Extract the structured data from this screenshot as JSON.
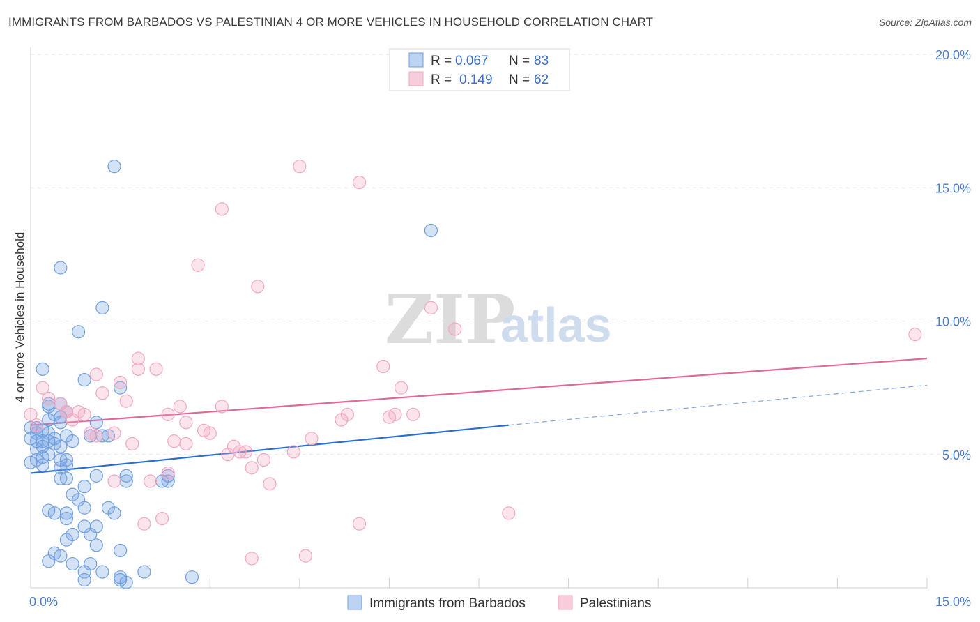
{
  "title": "IMMIGRANTS FROM BARBADOS VS PALESTINIAN 4 OR MORE VEHICLES IN HOUSEHOLD CORRELATION CHART",
  "source": "Source: ZipAtlas.com",
  "watermark": {
    "zip": "ZIP",
    "atlas": "atlas"
  },
  "legend": {
    "r_label": "R =",
    "n_label": "N =",
    "rows": [
      {
        "r": "0.067",
        "n": "83"
      },
      {
        "r": "0.149",
        "n": "62"
      }
    ]
  },
  "chart_data": {
    "type": "scatter",
    "ylabel": "4 or more Vehicles in Household",
    "xlabel": "",
    "xlim": [
      0,
      15
    ],
    "ylim": [
      0,
      20
    ],
    "x_tick_labels": [
      "0.0%",
      "15.0%"
    ],
    "y_tick_labels": [
      "5.0%",
      "10.0%",
      "15.0%",
      "20.0%"
    ],
    "y_ticks": [
      5,
      10,
      15,
      20
    ],
    "grid": "horizontal dashed",
    "legend_position": "top-center",
    "series": [
      {
        "name": "Immigrants from Barbados",
        "color": "#6f9fe0",
        "line_color": "#2a6fcf",
        "r": 0.067,
        "n": 83,
        "trend": {
          "x0": 0,
          "y0": 4.3,
          "x1": 8.0,
          "y1": 6.1,
          "extend_to": 15,
          "extend_y": 7.6
        },
        "points": [
          [
            1.4,
            15.8
          ],
          [
            6.7,
            13.4
          ],
          [
            0.5,
            12.0
          ],
          [
            1.2,
            10.5
          ],
          [
            0.8,
            9.6
          ],
          [
            0.2,
            8.2
          ],
          [
            0.9,
            7.8
          ],
          [
            1.5,
            7.5
          ],
          [
            0.3,
            6.9
          ],
          [
            0.5,
            6.9
          ],
          [
            0.3,
            6.8
          ],
          [
            0.6,
            6.6
          ],
          [
            0.4,
            6.5
          ],
          [
            0.5,
            6.4
          ],
          [
            0.5,
            6.2
          ],
          [
            1.1,
            6.2
          ],
          [
            0.0,
            6.0
          ],
          [
            0.1,
            6.0
          ],
          [
            0.2,
            5.9
          ],
          [
            0.1,
            5.8
          ],
          [
            0.3,
            5.8
          ],
          [
            0.6,
            5.7
          ],
          [
            1.0,
            5.7
          ],
          [
            1.2,
            5.7
          ],
          [
            1.3,
            5.7
          ],
          [
            0.0,
            5.6
          ],
          [
            0.1,
            5.5
          ],
          [
            0.2,
            5.5
          ],
          [
            0.3,
            5.5
          ],
          [
            0.4,
            5.4
          ],
          [
            0.1,
            5.2
          ],
          [
            0.5,
            5.3
          ],
          [
            0.3,
            5.0
          ],
          [
            0.2,
            4.9
          ],
          [
            0.1,
            4.8
          ],
          [
            0.5,
            4.8
          ],
          [
            0.6,
            4.8
          ],
          [
            0.0,
            4.7
          ],
          [
            0.6,
            4.6
          ],
          [
            1.1,
            4.2
          ],
          [
            1.6,
            4.2
          ],
          [
            2.3,
            4.2
          ],
          [
            0.5,
            4.1
          ],
          [
            0.6,
            4.1
          ],
          [
            1.6,
            4.0
          ],
          [
            2.2,
            4.0
          ],
          [
            2.3,
            4.0
          ],
          [
            0.9,
            3.8
          ],
          [
            0.7,
            3.5
          ],
          [
            0.3,
            2.9
          ],
          [
            0.4,
            2.8
          ],
          [
            0.6,
            2.8
          ],
          [
            0.9,
            3.0
          ],
          [
            1.3,
            3.0
          ],
          [
            1.4,
            2.8
          ],
          [
            0.6,
            2.6
          ],
          [
            0.9,
            2.3
          ],
          [
            1.1,
            2.3
          ],
          [
            0.7,
            2.0
          ],
          [
            0.6,
            1.8
          ],
          [
            1.1,
            1.6
          ],
          [
            1.5,
            1.4
          ],
          [
            0.3,
            1.0
          ],
          [
            0.5,
            1.2
          ],
          [
            0.7,
            0.9
          ],
          [
            1.0,
            0.9
          ],
          [
            0.9,
            0.6
          ],
          [
            1.2,
            0.6
          ],
          [
            1.5,
            0.4
          ],
          [
            1.9,
            0.6
          ],
          [
            2.7,
            0.4
          ],
          [
            1.6,
            0.2
          ],
          [
            0.9,
            0.3
          ],
          [
            1.5,
            0.3
          ],
          [
            0.4,
            1.3
          ],
          [
            0.2,
            5.3
          ],
          [
            0.4,
            5.6
          ],
          [
            0.7,
            5.5
          ],
          [
            0.3,
            6.3
          ],
          [
            0.8,
            3.3
          ],
          [
            1.0,
            2.0
          ],
          [
            0.5,
            4.5
          ],
          [
            0.2,
            4.6
          ]
        ]
      },
      {
        "name": "Palestinians",
        "color": "#f2a7c0",
        "line_color": "#e0679a",
        "r": 0.149,
        "n": 62,
        "trend": {
          "x0": 0,
          "y0": 6.1,
          "x1": 15,
          "y1": 8.6
        },
        "points": [
          [
            4.5,
            15.8
          ],
          [
            5.5,
            15.2
          ],
          [
            3.2,
            14.2
          ],
          [
            2.8,
            12.1
          ],
          [
            3.8,
            11.3
          ],
          [
            6.7,
            10.5
          ],
          [
            7.1,
            9.7
          ],
          [
            14.8,
            9.5
          ],
          [
            1.8,
            8.6
          ],
          [
            1.8,
            8.2
          ],
          [
            2.1,
            8.2
          ],
          [
            5.9,
            8.3
          ],
          [
            1.1,
            8.0
          ],
          [
            1.5,
            7.7
          ],
          [
            0.2,
            7.5
          ],
          [
            1.2,
            7.3
          ],
          [
            6.2,
            7.5
          ],
          [
            0.3,
            7.1
          ],
          [
            0.5,
            6.9
          ],
          [
            1.6,
            7.0
          ],
          [
            2.5,
            6.8
          ],
          [
            3.2,
            6.8
          ],
          [
            0.6,
            6.6
          ],
          [
            0.8,
            6.6
          ],
          [
            0.9,
            6.5
          ],
          [
            0.0,
            6.5
          ],
          [
            2.3,
            6.5
          ],
          [
            5.2,
            6.3
          ],
          [
            5.3,
            6.5
          ],
          [
            6.0,
            6.4
          ],
          [
            6.1,
            6.5
          ],
          [
            6.4,
            6.5
          ],
          [
            0.7,
            6.3
          ],
          [
            2.6,
            6.2
          ],
          [
            2.9,
            5.9
          ],
          [
            1.0,
            5.8
          ],
          [
            1.1,
            5.7
          ],
          [
            1.4,
            5.8
          ],
          [
            3.0,
            5.8
          ],
          [
            4.7,
            5.6
          ],
          [
            1.7,
            5.4
          ],
          [
            2.4,
            5.5
          ],
          [
            2.6,
            5.4
          ],
          [
            3.4,
            5.3
          ],
          [
            3.5,
            5.1
          ],
          [
            4.4,
            5.1
          ],
          [
            3.6,
            5.1
          ],
          [
            3.3,
            5.0
          ],
          [
            3.9,
            4.8
          ],
          [
            3.7,
            4.5
          ],
          [
            1.4,
            4.0
          ],
          [
            2.0,
            4.0
          ],
          [
            2.3,
            4.3
          ],
          [
            4.0,
            3.9
          ],
          [
            8.0,
            2.8
          ],
          [
            2.2,
            2.6
          ],
          [
            1.9,
            2.4
          ],
          [
            5.5,
            2.4
          ],
          [
            3.7,
            1.1
          ],
          [
            4.6,
            1.2
          ],
          [
            0.1,
            6.1
          ],
          [
            0.6,
            6.6
          ]
        ]
      }
    ]
  }
}
